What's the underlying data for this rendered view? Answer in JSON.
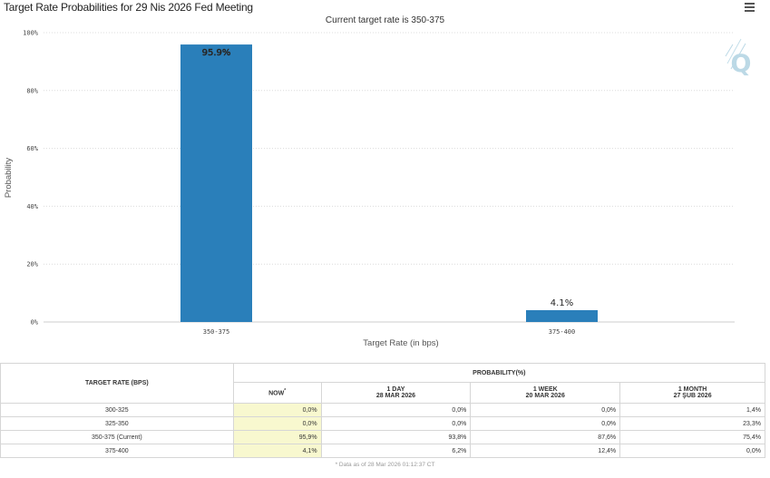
{
  "chart_data": {
    "type": "bar",
    "title": "Target Rate Probabilities for 29 Nis 2026 Fed Meeting",
    "subtitle": "Current target rate is 350-375",
    "categories": [
      "350-375",
      "375-400"
    ],
    "values": [
      95.9,
      4.1
    ],
    "data_labels": [
      "95.9%",
      "4.1%"
    ],
    "xlabel": "Target Rate (in bps)",
    "ylabel": "Probability",
    "ylim": [
      0,
      100
    ],
    "yticks": [
      0,
      20,
      40,
      60,
      80,
      100
    ],
    "ytick_labels": [
      "0%",
      "20%",
      "40%",
      "60%",
      "80%",
      "100%"
    ],
    "grid": true,
    "bar_color": "#2a7fba"
  },
  "watermark": "Q",
  "menu_icon": "hamburger-menu-icon",
  "table": {
    "rate_header": "TARGET RATE (BPS)",
    "prob_header": "PROBABILITY(%)",
    "columns": [
      {
        "label": "NOW",
        "mark": "*",
        "date": ""
      },
      {
        "label": "1 DAY",
        "mark": "",
        "date": "28 MAR 2026"
      },
      {
        "label": "1 WEEK",
        "mark": "",
        "date": "20 MAR 2026"
      },
      {
        "label": "1 MONTH",
        "mark": "",
        "date": "27 ŞUB 2026"
      }
    ],
    "rows": [
      {
        "rate": "300-325",
        "values": [
          "0,0%",
          "0,0%",
          "0,0%",
          "1,4%"
        ]
      },
      {
        "rate": "325-350",
        "values": [
          "0,0%",
          "0,0%",
          "0,0%",
          "23,3%"
        ]
      },
      {
        "rate": "350-375 (Current)",
        "values": [
          "95,9%",
          "93,8%",
          "87,6%",
          "75,4%"
        ]
      },
      {
        "rate": "375-400",
        "values": [
          "4,1%",
          "6,2%",
          "12,4%",
          "0,0%"
        ]
      }
    ],
    "note": "* Data as of 28 Mar 2026 01:12:37 CT"
  }
}
